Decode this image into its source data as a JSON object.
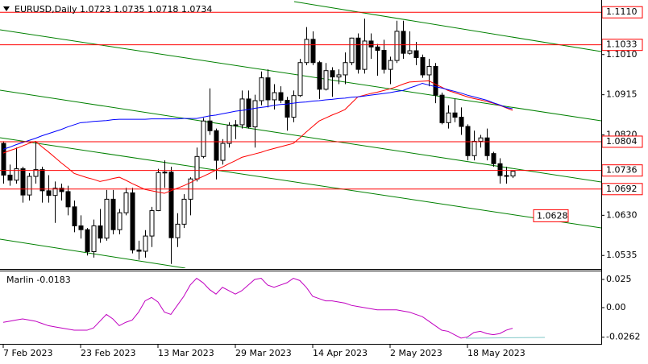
{
  "chart_data": {
    "type": "candlestick",
    "title": "EURUSD,Daily  1.0723 1.0735 1.0718 1.0734",
    "categories": [
      "7 Feb 2023",
      null,
      null,
      null,
      null,
      null,
      null,
      null,
      null,
      null,
      null,
      null,
      "23 Feb 2023",
      null,
      null,
      null,
      null,
      null,
      null,
      null,
      null,
      null,
      null,
      null,
      "13 Mar 2023",
      null,
      null,
      null,
      null,
      null,
      null,
      null,
      null,
      null,
      null,
      null,
      "29 Mar 2023",
      null,
      null,
      null,
      null,
      null,
      null,
      null,
      null,
      null,
      null,
      null,
      "14 Apr 2023",
      null,
      null,
      null,
      null,
      null,
      null,
      null,
      null,
      null,
      null,
      null,
      "2 May 2023",
      null,
      null,
      null,
      null,
      null,
      null,
      null,
      null,
      null,
      null,
      null,
      "18 May 2023",
      null,
      null,
      null,
      null,
      null,
      null,
      null
    ],
    "open": [
      1.08,
      1.0725,
      1.0713,
      1.074,
      1.0678,
      1.0722,
      1.0738,
      1.0688,
      1.0677,
      1.0694,
      1.0686,
      1.065,
      1.0605,
      1.0596,
      1.0544,
      1.0605,
      1.0576,
      1.0668,
      1.0596,
      1.0636,
      1.0683,
      1.0548,
      1.0545,
      1.0581,
      1.0641,
      1.0731,
      1.0732,
      1.0577,
      1.0609,
      1.0668,
      1.0716,
      1.0769,
      1.0853,
      1.083,
      1.076,
      1.08,
      1.0843,
      1.0844,
      1.0905,
      1.0839,
      1.0901,
      1.0955,
      1.0903,
      1.092,
      1.0902,
      1.0862,
      1.0913,
      1.0991,
      1.1046,
      1.0991,
      1.0928,
      1.0972,
      1.0957,
      1.0962,
      1.0991,
      1.1049,
      1.0975,
      1.1042,
      1.1028,
      1.102,
      1.0975,
      1.0996,
      1.1065,
      1.1013,
      1.1019,
      1.1003,
      1.0962,
      1.0982,
      1.0914,
      1.0849,
      1.0872,
      1.0862,
      1.084,
      1.0771,
      1.0805,
      1.0813,
      1.0776,
      1.0752,
      1.0724,
      1.0723
    ],
    "high": [
      1.0805,
      1.075,
      1.079,
      1.0745,
      1.073,
      1.0805,
      1.0745,
      1.0725,
      1.071,
      1.0705,
      1.07,
      1.0665,
      1.063,
      1.06,
      1.062,
      1.0645,
      1.069,
      1.069,
      1.0645,
      1.0695,
      1.0695,
      1.057,
      1.0595,
      1.065,
      1.074,
      1.076,
      1.0745,
      1.0635,
      1.068,
      1.072,
      1.079,
      1.086,
      1.093,
      1.0835,
      1.081,
      1.085,
      1.0855,
      1.0925,
      1.0925,
      1.0915,
      1.097,
      1.0975,
      1.094,
      1.0935,
      1.091,
      1.0925,
      1.1,
      1.1075,
      1.1065,
      1.0995,
      1.099,
      1.098,
      1.0975,
      1.1015,
      1.105,
      1.106,
      1.1095,
      1.106,
      1.1035,
      1.1045,
      1.1005,
      1.109,
      1.109,
      1.1065,
      1.104,
      1.101,
      1.1,
      1.099,
      1.092,
      1.089,
      1.0905,
      1.0885,
      1.0845,
      1.083,
      1.082,
      1.0835,
      1.078,
      1.0765,
      1.0745,
      1.0735
    ],
    "low": [
      1.0705,
      1.07,
      1.0705,
      1.066,
      1.0665,
      1.0705,
      1.066,
      1.066,
      1.0612,
      1.0665,
      1.063,
      1.059,
      1.0575,
      1.0535,
      1.053,
      1.0565,
      1.057,
      1.0585,
      1.0585,
      1.063,
      1.054,
      1.0525,
      1.053,
      1.0555,
      1.064,
      1.0695,
      1.0515,
      1.0555,
      1.06,
      1.063,
      1.071,
      1.0765,
      1.082,
      1.0715,
      1.075,
      1.079,
      1.081,
      1.0835,
      1.0835,
      1.079,
      1.089,
      1.0885,
      1.088,
      1.0895,
      1.083,
      1.085,
      1.091,
      1.0985,
      1.0985,
      1.0905,
      1.0925,
      1.091,
      1.094,
      1.094,
      1.0985,
      1.0965,
      1.0965,
      1.1,
      1.096,
      1.0965,
      1.094,
      1.099,
      1.1,
      1.101,
      1.0985,
      1.0955,
      1.0935,
      1.0895,
      1.0845,
      1.0835,
      1.085,
      1.082,
      1.076,
      1.076,
      1.079,
      1.076,
      1.0745,
      1.0705,
      1.0705,
      1.0718
    ],
    "close": [
      1.0725,
      1.0713,
      1.074,
      1.0678,
      1.0722,
      1.0738,
      1.0688,
      1.0677,
      1.0694,
      1.0686,
      1.065,
      1.0605,
      1.0596,
      1.0544,
      1.0605,
      1.0576,
      1.0668,
      1.0596,
      1.0636,
      1.0683,
      1.0548,
      1.0545,
      1.0581,
      1.0641,
      1.0731,
      1.0732,
      1.0577,
      1.0609,
      1.0668,
      1.0716,
      1.0769,
      1.0853,
      1.083,
      1.076,
      1.08,
      1.0843,
      1.0844,
      1.0905,
      1.0839,
      1.0901,
      1.0955,
      1.0903,
      1.092,
      1.0902,
      1.0862,
      1.0913,
      1.0991,
      1.1046,
      1.0991,
      1.0928,
      1.0972,
      1.0957,
      1.0962,
      1.0991,
      1.1049,
      1.0975,
      1.1042,
      1.1028,
      1.102,
      1.0975,
      1.0996,
      1.1065,
      1.1013,
      1.1019,
      1.1003,
      1.0962,
      1.0982,
      1.0914,
      1.0849,
      1.0872,
      1.0862,
      1.084,
      1.0771,
      1.0805,
      1.0813,
      1.0771,
      1.0752,
      1.0724,
      1.0723,
      1.0734
    ],
    "up_color": "#ffffff",
    "down_color": "#000000",
    "wick_color": "#000000",
    "overlays": [
      {
        "color": "#ff0000",
        "values": [
          1.0777,
          1.0783,
          1.0788,
          1.0794,
          1.08,
          1.0805,
          1.0792,
          1.078,
          1.0767,
          1.0754,
          1.0742,
          1.0729,
          1.0724,
          1.0719,
          1.0715,
          1.071,
          1.0713,
          1.0717,
          1.072,
          1.0713,
          1.0705,
          1.0698,
          1.0691,
          1.0688,
          1.0685,
          1.0682,
          1.0688,
          1.0694,
          1.07,
          1.0707,
          1.0715,
          1.0722,
          1.0729,
          1.0737,
          1.0744,
          1.0752,
          1.0759,
          1.0767,
          1.0771,
          1.0775,
          1.0779,
          1.0784,
          1.0788,
          1.0792,
          1.0796,
          1.08,
          1.0813,
          1.0827,
          1.084,
          1.0853,
          1.086,
          1.0867,
          1.0873,
          1.088,
          1.0895,
          1.091,
          1.0914,
          1.0918,
          1.0921,
          1.0925,
          1.0929,
          1.0934,
          1.094,
          1.0945,
          1.0946,
          1.0947,
          1.0948,
          1.094,
          1.0933,
          1.0925,
          1.092,
          1.0915,
          1.091,
          1.0906,
          1.0903,
          1.0899,
          1.0895,
          1.089,
          1.0884,
          1.0878
        ]
      },
      {
        "color": "#0000ff",
        "values": [
          1.0786,
          1.0791,
          1.0797,
          1.0802,
          1.0807,
          1.0812,
          1.0818,
          1.0823,
          1.0828,
          1.0833,
          1.0839,
          1.0844,
          1.0849,
          1.085,
          1.0852,
          1.0853,
          1.0854,
          1.0856,
          1.0857,
          1.0857,
          1.0857,
          1.0857,
          1.0857,
          1.0858,
          1.0858,
          1.0858,
          1.0858,
          1.0858,
          1.0859,
          1.0859,
          1.0859,
          1.0862,
          1.0865,
          1.0867,
          1.087,
          1.0873,
          1.0876,
          1.0878,
          1.088,
          1.0883,
          1.0885,
          1.0887,
          1.089,
          1.0892,
          1.0893,
          1.0895,
          1.0897,
          1.0898,
          1.09,
          1.0901,
          1.0903,
          1.0904,
          1.0906,
          1.0907,
          1.0909,
          1.091,
          1.0912,
          1.0914,
          1.0916,
          1.0918,
          1.092,
          1.0923,
          1.0925,
          1.0931,
          1.0936,
          1.0942,
          1.0938,
          1.0934,
          1.0931,
          1.0927,
          1.0923,
          1.0919,
          1.0914,
          1.091,
          1.0906,
          1.0902,
          1.0896,
          1.0891,
          1.0885,
          1.0882
        ]
      }
    ],
    "ylim": [
      1.0505,
      1.1139
    ],
    "yticks": [
      1.0535,
      {
        "value": 1.063,
        "label": "1.0630"
      },
      {
        "value": 1.082,
        "label": "1.0820"
      },
      1.0915,
      {
        "value": 1.101,
        "label": "1.1010"
      }
    ],
    "levels": [
      {
        "value": 1.111,
        "label": "1.1110"
      },
      1.1033,
      1.0804,
      1.0736,
      1.0692
    ],
    "level_color": "#ff0000",
    "marker_price": 1.0628,
    "indicator": {
      "type": "line",
      "title": "Marlin -0.0183",
      "color": "#c000c0",
      "values": [
        -0.013,
        -0.012,
        -0.011,
        -0.01,
        -0.011,
        -0.012,
        -0.014,
        -0.016,
        -0.017,
        -0.018,
        -0.019,
        -0.02,
        -0.02,
        -0.02,
        -0.018,
        -0.012,
        -0.006,
        -0.01,
        -0.016,
        -0.013,
        -0.011,
        -0.004,
        0.006,
        0.009,
        0.005,
        -0.004,
        -0.006,
        0.002,
        0.01,
        0.02,
        0.026,
        0.022,
        0.016,
        0.012,
        0.018,
        0.015,
        0.012,
        0.015,
        0.02,
        0.025,
        0.026,
        0.02,
        0.018,
        0.02,
        0.022,
        0.026,
        0.024,
        0.018,
        0.01,
        0.008,
        0.006,
        0.006,
        0.005,
        0.004,
        0.002,
        0.001,
        0.0,
        -0.001,
        -0.002,
        -0.002,
        -0.002,
        -0.002,
        -0.003,
        -0.004,
        -0.006,
        -0.008,
        -0.012,
        -0.016,
        -0.02,
        -0.021,
        -0.024,
        -0.027,
        -0.026,
        -0.022,
        -0.021,
        -0.023,
        -0.024,
        -0.023,
        -0.02,
        -0.0183
      ],
      "ylim": [
        -0.0321,
        0.0321
      ],
      "yticks": [
        0.025,
        {
          "value": 0,
          "label": "0.00"
        },
        -0.0262
      ]
    }
  }
}
